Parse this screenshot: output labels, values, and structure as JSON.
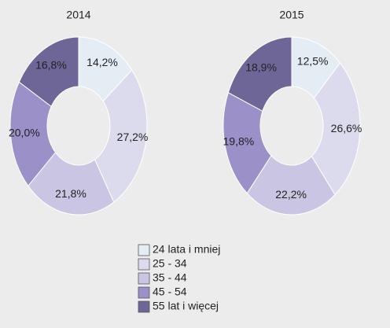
{
  "legend": {
    "categories": [
      "24 lata i mniej",
      "25 - 34",
      "35 - 44",
      "45 - 54",
      "55 lat i więcej"
    ],
    "colors": [
      "#e4edf4",
      "#dcdbee",
      "#c9c5e3",
      "#9c90c8",
      "#6f6698"
    ]
  },
  "chart_data": [
    {
      "type": "pie",
      "title": "2014",
      "values": [
        14.2,
        27.2,
        21.8,
        20.0,
        16.8
      ],
      "value_labels": [
        "14,2%",
        "27,2%",
        "21,8%",
        "20,0%",
        "16,8%"
      ]
    },
    {
      "type": "pie",
      "title": "2015",
      "values": [
        12.5,
        26.6,
        22.2,
        19.8,
        18.9
      ],
      "value_labels": [
        "12,5%",
        "26,6%",
        "22,2%",
        "19,8%",
        "18,9%"
      ]
    }
  ]
}
